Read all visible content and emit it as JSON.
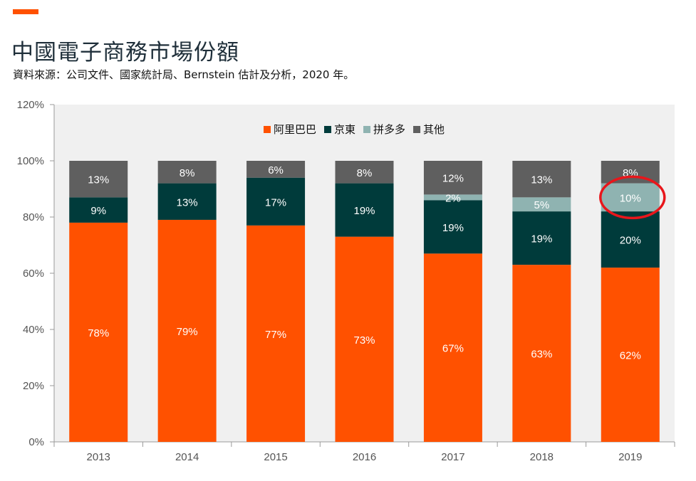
{
  "header": {
    "title": "中國電子商務市場份額",
    "subtitle": "資料來源：公司文件、國家統計局、Bernstein 估計及分析，2020 年。"
  },
  "colors": {
    "accent": "#ff5100",
    "plot_background": "#f0f0f0",
    "highlight_circle": "#e8161b"
  },
  "chart_data": {
    "type": "bar",
    "stacked": true,
    "categories": [
      "2013",
      "2014",
      "2015",
      "2016",
      "2017",
      "2018",
      "2019"
    ],
    "y_ticks": [
      "0%",
      "20%",
      "40%",
      "60%",
      "80%",
      "100%",
      "120%"
    ],
    "ylim": [
      0,
      120
    ],
    "grid": false,
    "legend_position": "top-center",
    "series": [
      {
        "name": "阿里巴巴",
        "color": "#ff5100",
        "label_color": "#ffffff",
        "values": [
          78,
          79,
          77,
          73,
          67,
          63,
          62
        ],
        "labels": [
          "78%",
          "79%",
          "77%",
          "73%",
          "67%",
          "63%",
          "62%"
        ]
      },
      {
        "name": "京東",
        "color": "#003b3b",
        "label_color": "#ffffff",
        "values": [
          9,
          13,
          17,
          19,
          19,
          19,
          20
        ],
        "labels": [
          "9%",
          "13%",
          "17%",
          "19%",
          "19%",
          "19%",
          "20%"
        ]
      },
      {
        "name": "拼多多",
        "color": "#8fb3b1",
        "label_color": "#ffffff",
        "values": [
          0,
          0,
          0,
          0,
          2,
          5,
          10
        ],
        "labels": [
          "",
          "",
          "",
          "",
          "2%",
          "5%",
          "10%"
        ]
      },
      {
        "name": "其他",
        "color": "#5f5f5f",
        "label_color": "#ffffff",
        "values": [
          13,
          8,
          6,
          8,
          12,
          13,
          8
        ],
        "labels": [
          "13%",
          "8%",
          "6%",
          "8%",
          "12%",
          "13%",
          "8%"
        ]
      }
    ],
    "highlight": {
      "category": "2019",
      "series": "拼多多",
      "shape": "circle"
    }
  }
}
